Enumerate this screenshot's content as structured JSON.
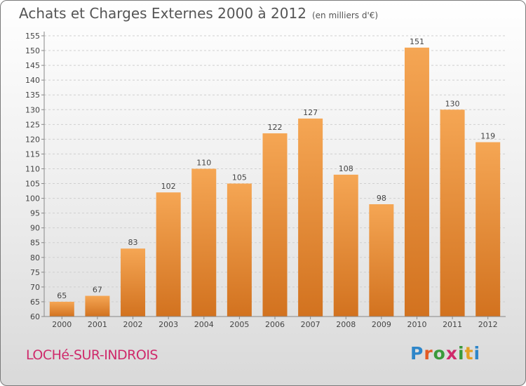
{
  "title": "Achats et Charges Externes 2000 à 2012",
  "subtitle": "(en milliers d'€)",
  "commune": "LOCHé-SUR-INDROIS",
  "brand": {
    "text": "Proxiti",
    "letter_colors": [
      "#2e86c9",
      "#e35a24",
      "#3a9a3a",
      "#cf2a6b",
      "#3a9a3a",
      "#e3a023",
      "#2e86c9"
    ]
  },
  "colors": {
    "bar_light": "#f5a654",
    "bar_dark": "#d2721f",
    "title": "#555555",
    "commune": "#cf2a6b"
  },
  "chart_data": {
    "type": "bar",
    "categories": [
      "2000",
      "2001",
      "2002",
      "2003",
      "2004",
      "2005",
      "2006",
      "2007",
      "2008",
      "2009",
      "2010",
      "2011",
      "2012"
    ],
    "values": [
      65,
      67,
      83,
      102,
      110,
      105,
      122,
      127,
      108,
      98,
      151,
      130,
      119
    ],
    "ylim": [
      60,
      155
    ],
    "yticks": [
      60,
      65,
      70,
      75,
      80,
      85,
      90,
      95,
      100,
      105,
      110,
      115,
      120,
      125,
      130,
      135,
      140,
      145,
      150,
      155
    ],
    "grid": true,
    "data_labels": true
  }
}
